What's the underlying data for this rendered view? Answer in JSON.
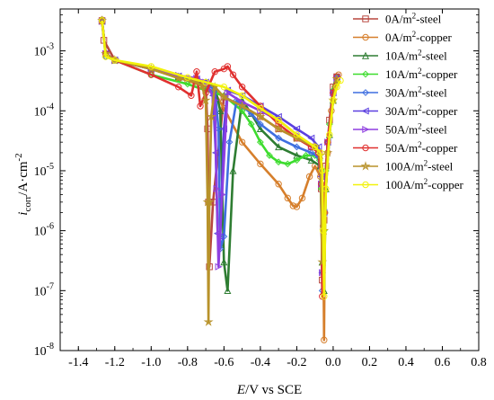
{
  "chart_data": {
    "type": "line",
    "title": "",
    "xlabel": "E/V vs SCE",
    "ylabel": "icorr/A·cm-2",
    "x_axis_range": [
      -1.5,
      0.8
    ],
    "y_axis_range": [
      1e-08,
      0.005
    ],
    "y_scale": "log",
    "grid": false,
    "legend_position": "top-right",
    "x_ticks": [
      "-1.4",
      "-1.2",
      "-1.0",
      "-0.8",
      "-0.6",
      "-0.4",
      "-0.2",
      "0.0",
      "0.2",
      "0.4",
      "0.6",
      "0.8"
    ],
    "y_ticks": [
      "10-8",
      "10-7",
      "10-6",
      "10-5",
      "10-4",
      "10-3"
    ],
    "series": [
      {
        "name": "0A/m2-steel",
        "color": "#b8473f",
        "marker": "square",
        "x": [
          -1.27,
          -1.26,
          -1.2,
          -1.0,
          -0.85,
          -0.75,
          -0.7,
          -0.69,
          -0.685,
          -0.68,
          -0.66,
          -0.6,
          -0.5,
          -0.4,
          -0.3,
          -0.2,
          -0.12,
          -0.08,
          -0.065,
          -0.06,
          -0.05,
          -0.04,
          -0.02,
          0.0,
          0.02
        ],
        "y": [
          0.0032,
          0.0015,
          0.0007,
          0.0005,
          0.00036,
          0.00032,
          0.00025,
          5e-05,
          3e-06,
          2.5e-07,
          3e-06,
          0.00017,
          0.00012,
          8e-05,
          5e-05,
          3.5e-05,
          2.5e-05,
          2e-05,
          5e-06,
          1.5e-07,
          1.5e-06,
          1.2e-05,
          7e-05,
          0.00025,
          0.00037
        ]
      },
      {
        "name": "0A/m2-copper",
        "color": "#d67f2c",
        "marker": "circle",
        "x": [
          -1.27,
          -1.25,
          -1.2,
          -1.0,
          -0.8,
          -0.7,
          -0.65,
          -0.6,
          -0.5,
          -0.4,
          -0.3,
          -0.25,
          -0.22,
          -0.2,
          -0.17,
          -0.13,
          -0.1,
          -0.07,
          -0.055,
          -0.05,
          -0.045,
          -0.03,
          -0.01,
          0.01,
          0.03
        ],
        "y": [
          0.0033,
          0.0009,
          0.0007,
          0.0005,
          0.00032,
          0.00025,
          0.0002,
          0.00011,
          3e-05,
          1.3e-05,
          6e-06,
          3.5e-06,
          2.6e-06,
          2.5e-06,
          3.5e-06,
          8e-06,
          1.2e-05,
          8e-06,
          1.2e-06,
          1.5e-08,
          2e-06,
          2e-05,
          0.0001,
          0.00025,
          0.0004
        ]
      },
      {
        "name": "10A/m2-steel",
        "color": "#2e7d32",
        "marker": "triangle-up",
        "x": [
          -1.27,
          -1.25,
          -1.2,
          -1.0,
          -0.85,
          -0.75,
          -0.7,
          -0.65,
          -0.62,
          -0.6,
          -0.58,
          -0.55,
          -0.5,
          -0.45,
          -0.4,
          -0.3,
          -0.2,
          -0.12,
          -0.07,
          -0.06,
          -0.05,
          -0.04,
          -0.02,
          0.0,
          0.02
        ],
        "y": [
          0.0032,
          0.0009,
          0.0007,
          0.0005,
          0.00037,
          0.00033,
          0.0003,
          0.00025,
          0.0001,
          3e-07,
          1e-07,
          1e-05,
          0.00015,
          9e-05,
          5e-05,
          2.5e-05,
          1.8e-05,
          1.5e-05,
          1.2e-05,
          3e-07,
          1e-07,
          5e-06,
          4e-05,
          0.00015,
          0.00033
        ]
      },
      {
        "name": "10A/m2-copper",
        "color": "#3ddc2e",
        "marker": "diamond",
        "x": [
          -1.27,
          -1.25,
          -1.2,
          -1.0,
          -0.8,
          -0.7,
          -0.6,
          -0.5,
          -0.45,
          -0.4,
          -0.35,
          -0.3,
          -0.25,
          -0.2,
          -0.15,
          -0.1,
          -0.075,
          -0.065,
          -0.06,
          -0.05,
          -0.04,
          -0.02,
          0.0,
          0.02
        ],
        "y": [
          0.0033,
          0.0009,
          0.0007,
          0.0004,
          0.00028,
          0.00022,
          0.00018,
          0.0001,
          6e-05,
          3e-05,
          1.8e-05,
          1.4e-05,
          1.3e-05,
          1.5e-05,
          1.8e-05,
          1.8e-05,
          1.5e-05,
          5e-06,
          2e-07,
          1e-06,
          1e-05,
          6e-05,
          0.00022,
          0.00037
        ]
      },
      {
        "name": "30A/m2-steel",
        "color": "#3f6fe0",
        "marker": "diamond",
        "x": [
          -1.27,
          -1.25,
          -1.2,
          -1.0,
          -0.85,
          -0.75,
          -0.7,
          -0.65,
          -0.63,
          -0.62,
          -0.6,
          -0.57,
          -0.53,
          -0.5,
          -0.45,
          -0.4,
          -0.3,
          -0.2,
          -0.12,
          -0.08,
          -0.065,
          -0.06,
          -0.05,
          -0.03,
          0.0,
          0.02
        ],
        "y": [
          0.0031,
          0.0008,
          0.0007,
          0.0005,
          0.00038,
          0.00034,
          0.0003,
          0.00022,
          5e-05,
          5e-07,
          8e-07,
          3e-05,
          0.00015,
          0.00012,
          9e-05,
          6e-05,
          3.5e-05,
          2.5e-05,
          2e-05,
          1.7e-05,
          6e-06,
          1e-07,
          2e-06,
          3e-05,
          0.0002,
          0.00036
        ]
      },
      {
        "name": "30A/m2-copper",
        "color": "#5b3fe0",
        "marker": "triangle-left",
        "x": [
          -1.27,
          -1.25,
          -1.2,
          -1.0,
          -0.85,
          -0.75,
          -0.7,
          -0.66,
          -0.645,
          -0.635,
          -0.62,
          -0.6,
          -0.58,
          -0.5,
          -0.4,
          -0.3,
          -0.2,
          -0.12,
          -0.08,
          -0.065,
          -0.06,
          -0.05,
          -0.03,
          0.0,
          0.02
        ],
        "y": [
          0.0031,
          0.0009,
          0.0007,
          0.0005,
          0.00038,
          0.00034,
          0.0003,
          0.00018,
          2e-05,
          9e-07,
          8e-07,
          5e-05,
          0.00022,
          0.00018,
          0.00012,
          8e-05,
          5e-05,
          3.5e-05,
          2.5e-05,
          8e-06,
          2e-07,
          2e-06,
          3e-05,
          0.0002,
          0.00035
        ]
      },
      {
        "name": "50A/m2-steel",
        "color": "#8f3fe0",
        "marker": "triangle-right",
        "x": [
          -1.27,
          -1.25,
          -1.2,
          -1.0,
          -0.85,
          -0.75,
          -0.7,
          -0.65,
          -0.64,
          -0.63,
          -0.61,
          -0.58,
          -0.5,
          -0.4,
          -0.3,
          -0.2,
          -0.12,
          -0.08,
          -0.065,
          -0.06,
          -0.05,
          -0.03,
          0.0,
          0.02
        ],
        "y": [
          0.0031,
          0.0009,
          0.0007,
          0.0005,
          0.00039,
          0.00035,
          0.0003,
          0.00015,
          5e-06,
          2.5e-07,
          4e-06,
          0.0002,
          0.00014,
          0.0001,
          7e-05,
          4e-05,
          2.5e-05,
          2e-05,
          6e-06,
          2e-07,
          2e-06,
          3e-05,
          0.0002,
          0.00035
        ]
      },
      {
        "name": "50A/m2-copper",
        "color": "#e0302f",
        "marker": "circle",
        "x": [
          -1.27,
          -1.25,
          -1.2,
          -1.0,
          -0.85,
          -0.78,
          -0.75,
          -0.73,
          -0.7,
          -0.65,
          -0.6,
          -0.58,
          -0.55,
          -0.5,
          -0.4,
          -0.3,
          -0.2,
          -0.12,
          -0.08,
          -0.065,
          -0.06,
          -0.05,
          -0.03,
          0.0,
          0.02
        ],
        "y": [
          0.0031,
          0.0009,
          0.0007,
          0.0004,
          0.00025,
          0.00018,
          0.00045,
          0.00012,
          0.0002,
          0.00045,
          0.0005,
          0.00055,
          0.0004,
          0.00025,
          0.00012,
          6e-05,
          3.5e-05,
          2.5e-05,
          2e-05,
          6e-06,
          8e-08,
          2e-06,
          3e-05,
          0.0002,
          0.00037
        ]
      },
      {
        "name": "100A/m2-steel",
        "color": "#b8922a",
        "marker": "star",
        "x": [
          -1.27,
          -1.25,
          -1.2,
          -1.0,
          -0.85,
          -0.75,
          -0.72,
          -0.7,
          -0.69,
          -0.685,
          -0.68,
          -0.67,
          -0.65,
          -0.6,
          -0.5,
          -0.4,
          -0.3,
          -0.2,
          -0.1,
          -0.07,
          -0.06,
          -0.05,
          -0.03,
          0.0,
          0.02
        ],
        "y": [
          0.0032,
          0.0009,
          0.0007,
          0.0005,
          0.00035,
          0.0003,
          0.00026,
          0.00015,
          3e-06,
          3e-08,
          3e-06,
          8e-05,
          0.00025,
          0.00017,
          0.00012,
          8e-05,
          5e-05,
          3.5e-05,
          2.5e-05,
          1.8e-05,
          3e-07,
          1e-06,
          2e-05,
          0.00015,
          0.00034
        ]
      },
      {
        "name": "100A/m2-copper",
        "color": "#f2f20a",
        "marker": "circle",
        "x": [
          -1.27,
          -1.25,
          -1.2,
          -1.0,
          -0.8,
          -0.7,
          -0.6,
          -0.5,
          -0.4,
          -0.3,
          -0.2,
          -0.1,
          -0.07,
          -0.06,
          -0.055,
          -0.05,
          -0.04,
          -0.02,
          0.0,
          0.02,
          0.04
        ],
        "y": [
          0.0032,
          0.0008,
          0.0007,
          0.00055,
          0.00036,
          0.0003,
          0.00025,
          0.00018,
          0.00011,
          7e-05,
          4e-05,
          2.5e-05,
          2e-05,
          1e-05,
          1e-06,
          8e-08,
          5e-06,
          4e-05,
          0.00015,
          0.00025,
          0.00032
        ]
      }
    ]
  }
}
